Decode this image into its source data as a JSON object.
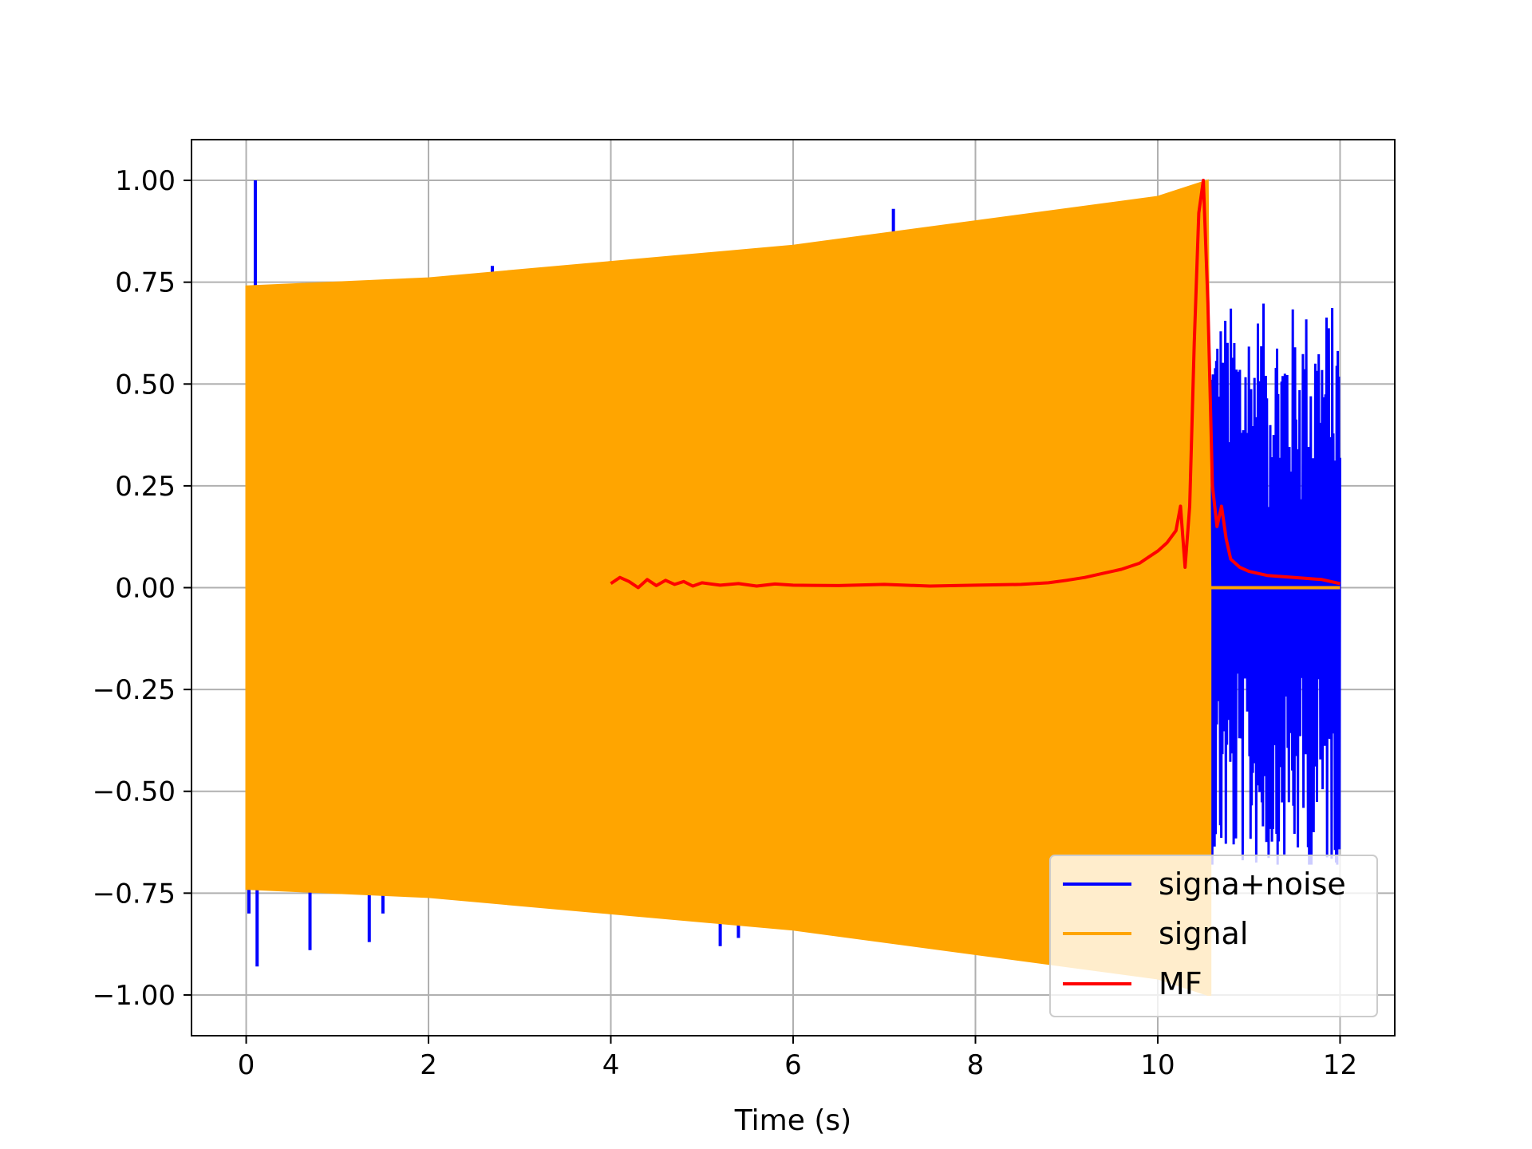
{
  "chart_data": {
    "type": "line",
    "title": "",
    "xlabel": "Time (s)",
    "ylabel": "",
    "xlim": [
      -0.6,
      12.6
    ],
    "ylim": [
      -1.1,
      1.1
    ],
    "xticks": [
      0,
      2,
      4,
      6,
      8,
      10,
      12
    ],
    "yticks": [
      1.0,
      0.75,
      0.5,
      0.25,
      0.0,
      -0.25,
      -0.5,
      -0.75,
      -1.0
    ],
    "xtick_labels": [
      "0",
      "2",
      "4",
      "6",
      "8",
      "10",
      "12"
    ],
    "ytick_labels": [
      "1.00",
      "0.75",
      "0.50",
      "0.25",
      "0.00",
      "−0.25",
      "−0.50",
      "−0.75",
      "−1.00"
    ],
    "grid": true,
    "legend_position": "lower-right",
    "series": [
      {
        "name": "signa+noise",
        "color": "#0000ff",
        "spikes": [
          {
            "x": 0.1,
            "y": 1.0
          },
          {
            "x": 0.12,
            "y": -0.93
          },
          {
            "x": 0.03,
            "y": -0.8
          },
          {
            "x": 0.7,
            "y": -0.89
          },
          {
            "x": 1.35,
            "y": -0.87
          },
          {
            "x": 1.5,
            "y": -0.8
          },
          {
            "x": 2.7,
            "y": 0.79
          },
          {
            "x": 5.0,
            "y": -0.82
          },
          {
            "x": 5.2,
            "y": -0.88
          },
          {
            "x": 5.4,
            "y": -0.86
          },
          {
            "x": 7.1,
            "y": 0.93
          }
        ],
        "noise_region": {
          "x_start": 10.58,
          "x_end": 12.0,
          "max": 0.77,
          "min": -0.68
        }
      },
      {
        "name": "signal",
        "color": "#ffa500",
        "envelope": [
          {
            "x": 0.0,
            "upper": 0.74,
            "lower": -0.74
          },
          {
            "x": 2.0,
            "upper": 0.76,
            "lower": -0.76
          },
          {
            "x": 4.0,
            "upper": 0.8,
            "lower": -0.8
          },
          {
            "x": 6.0,
            "upper": 0.84,
            "lower": -0.84
          },
          {
            "x": 8.0,
            "upper": 0.9,
            "lower": -0.9
          },
          {
            "x": 10.0,
            "upper": 0.96,
            "lower": -0.96
          },
          {
            "x": 10.55,
            "upper": 1.0,
            "lower": -1.0
          }
        ],
        "zero_after": [
          10.58,
          12.0
        ]
      },
      {
        "name": "MF",
        "color": "#ff0000",
        "x": [
          4.0,
          4.1,
          4.2,
          4.3,
          4.4,
          4.5,
          4.6,
          4.7,
          4.8,
          4.9,
          5.0,
          5.2,
          5.4,
          5.6,
          5.8,
          6.0,
          6.5,
          7.0,
          7.5,
          8.0,
          8.5,
          8.8,
          9.0,
          9.2,
          9.4,
          9.6,
          9.8,
          9.9,
          10.0,
          10.1,
          10.2,
          10.25,
          10.3,
          10.35,
          10.4,
          10.45,
          10.5,
          10.55,
          10.6,
          10.65,
          10.7,
          10.75,
          10.8,
          10.9,
          11.0,
          11.2,
          11.5,
          11.8,
          12.0
        ],
        "y": [
          0.01,
          0.025,
          0.015,
          0.0,
          0.02,
          0.005,
          0.018,
          0.008,
          0.015,
          0.004,
          0.012,
          0.006,
          0.01,
          0.004,
          0.009,
          0.006,
          0.005,
          0.008,
          0.004,
          0.006,
          0.008,
          0.012,
          0.018,
          0.025,
          0.035,
          0.045,
          0.06,
          0.075,
          0.09,
          0.11,
          0.14,
          0.2,
          0.05,
          0.2,
          0.6,
          0.92,
          1.0,
          0.7,
          0.25,
          0.15,
          0.2,
          0.12,
          0.07,
          0.05,
          0.04,
          0.03,
          0.025,
          0.02,
          0.01
        ]
      }
    ]
  }
}
